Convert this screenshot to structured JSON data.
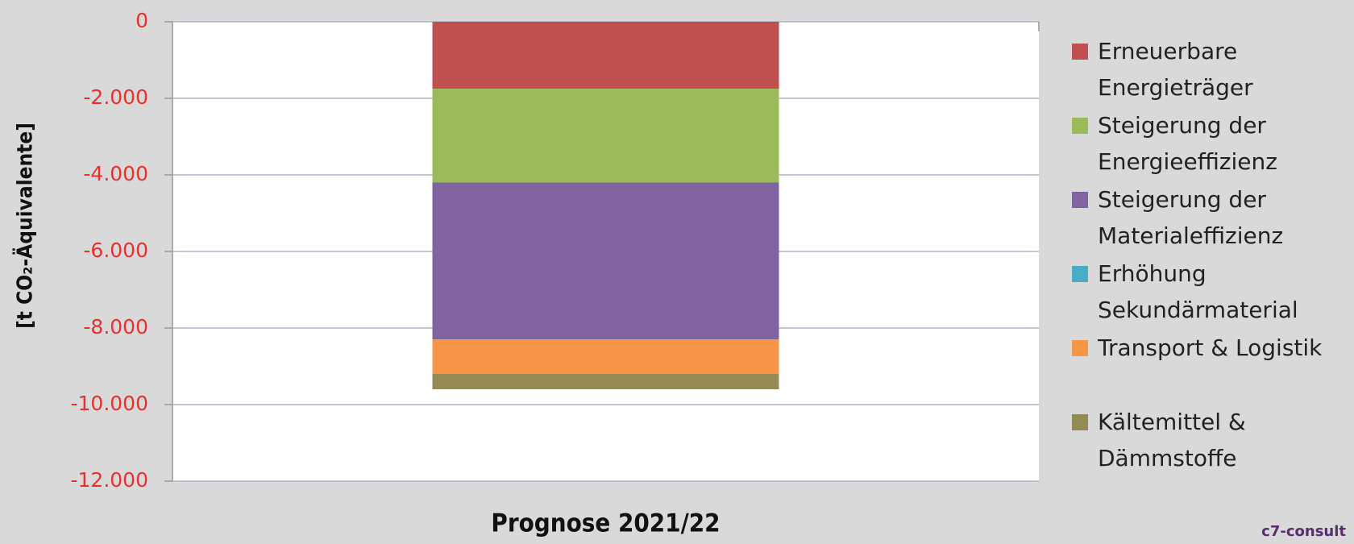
{
  "chart_data": {
    "type": "stacked_bar",
    "y_axis_label": "[t CO₂-Äquivalente]",
    "categories": [
      "Prognose 2021/22"
    ],
    "series": [
      {
        "name": "Erneuerbare Energieträger",
        "color": "#c0504d",
        "values": [
          -1750
        ]
      },
      {
        "name": "Steigerung der Energieeffizienz",
        "color": "#9bbb59",
        "values": [
          -2450
        ]
      },
      {
        "name": "Steigerung der Materialeffizienz",
        "color": "#8064a2",
        "values": [
          -4100
        ]
      },
      {
        "name": "Erhöhung Sekundärmaterial",
        "color": "#4bacc6",
        "values": [
          0
        ]
      },
      {
        "name": "Transport & Logistik",
        "color": "#f79646",
        "values": [
          -900
        ]
      },
      {
        "name": "Kältemittel & Dämmstoffe",
        "color": "#948a54",
        "values": [
          -400
        ]
      }
    ],
    "ylim": [
      -12000,
      0
    ],
    "yticks": [
      0,
      {
        "value": -2000,
        "label": "-2.000"
      },
      {
        "value": -4000,
        "label": "-4.000"
      },
      {
        "value": -6000,
        "label": "-6.000"
      },
      {
        "value": -8000,
        "label": "-8.000"
      },
      {
        "value": -10000,
        "label": "-10.000"
      },
      {
        "value": -12000,
        "label": "-12.000"
      }
    ],
    "grid": true,
    "legend": "right",
    "logo": "c7-consult"
  }
}
